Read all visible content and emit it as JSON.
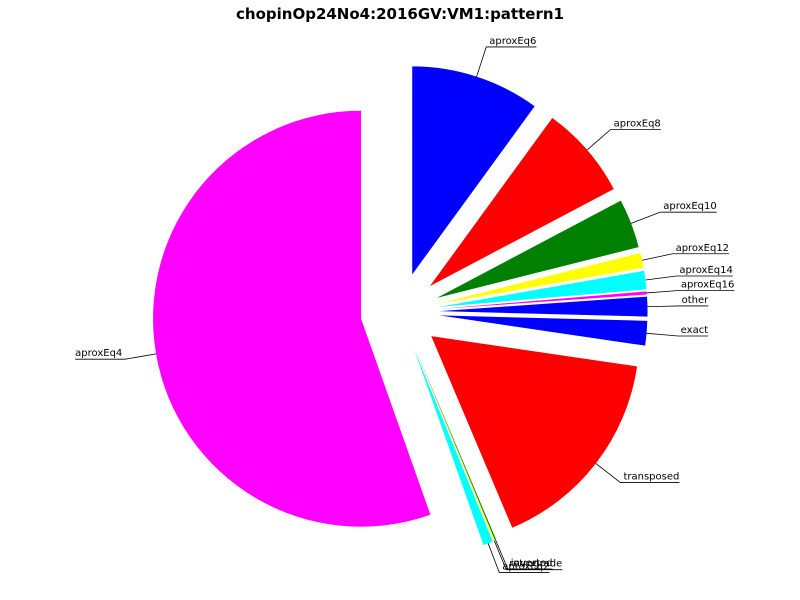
{
  "chart_data": {
    "type": "pie",
    "title": "chopinOp24No4:2016GV:VM1:pattern1",
    "slices": [
      {
        "label": "aproxEq6",
        "value": 10.5,
        "color": "#0000ff"
      },
      {
        "label": "aproxEq8",
        "value": 7.6,
        "color": "#ff0000"
      },
      {
        "label": "aproxEq10",
        "value": 4.0,
        "color": "#008000"
      },
      {
        "label": "aproxEq12",
        "value": 1.2,
        "color": "#ffff00"
      },
      {
        "label": "aproxEq14",
        "value": 1.5,
        "color": "#00ffff"
      },
      {
        "label": "aproxEq16",
        "value": 0.25,
        "color": "#ff00ff"
      },
      {
        "label": "other",
        "value": 1.6,
        "color": "#0000ff"
      },
      {
        "label": "exact",
        "value": 2.0,
        "color": "#0000ff"
      },
      {
        "label": "transposed",
        "value": 17.1,
        "color": "#ff0000"
      },
      {
        "label": "inverted",
        "value": 0.1,
        "color": "#008000"
      },
      {
        "label": "retrograde",
        "value": 0.1,
        "color": "#ffff00"
      },
      {
        "label": "aproxEq2",
        "value": 0.8,
        "color": "#00ffff"
      },
      {
        "label": "aproxEq4",
        "value": 58.1,
        "color": "#ff00ff"
      }
    ]
  }
}
